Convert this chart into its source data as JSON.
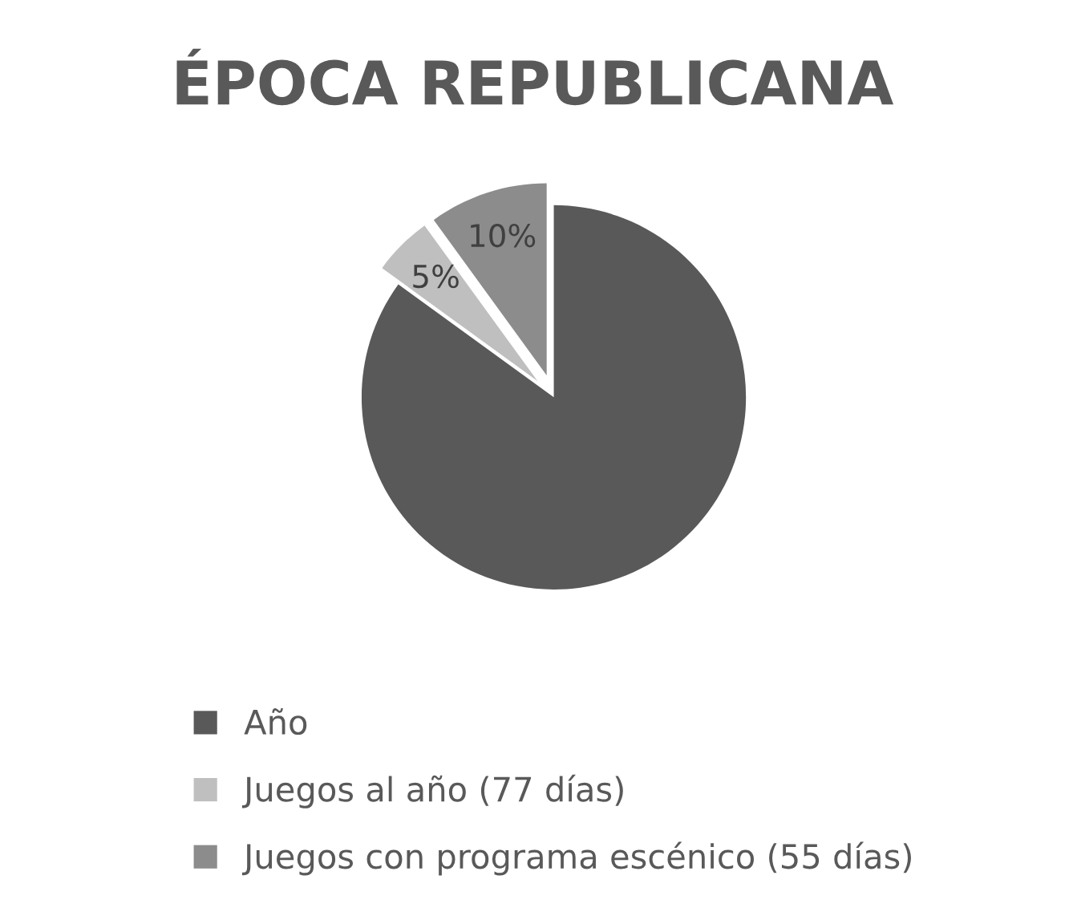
{
  "chart_data": {
    "type": "pie",
    "title": "ÉPOCA REPUBLICANA",
    "categories": [
      "Año",
      "Juegos al año (77 días)",
      "Juegos con programa escénico (55 días)"
    ],
    "values": [
      85,
      5,
      10
    ],
    "colors": [
      "#595959",
      "#bfbfbf",
      "#8c8c8c"
    ],
    "value_labels": [
      null,
      "5%",
      "10%"
    ],
    "legend": "bottom"
  }
}
